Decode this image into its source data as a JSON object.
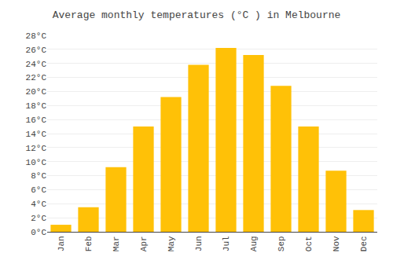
{
  "chart_data": {
    "type": "bar",
    "title": "Average monthly temperatures (°C ) in Melbourne",
    "categories": [
      "Jan",
      "Feb",
      "Mar",
      "Apr",
      "May",
      "Jun",
      "Jul",
      "Aug",
      "Sep",
      "Oct",
      "Nov",
      "Dec"
    ],
    "values": [
      1.0,
      3.5,
      9.2,
      15.0,
      19.2,
      23.8,
      26.2,
      25.2,
      20.8,
      15.0,
      8.7,
      3.1
    ],
    "color": "#FFC107",
    "ylim": [
      0,
      28
    ],
    "yticks": [
      {
        "value": 0,
        "label": "0°C"
      },
      {
        "value": 2,
        "label": "2°C"
      },
      {
        "value": 4,
        "label": "4°C"
      },
      {
        "value": 6,
        "label": "6°C"
      },
      {
        "value": 8,
        "label": "8°C"
      },
      {
        "value": 10,
        "label": "10°C"
      },
      {
        "value": 12,
        "label": "12°C"
      },
      {
        "value": 14,
        "label": "14°C"
      },
      {
        "value": 16,
        "label": "16°C"
      },
      {
        "value": 18,
        "label": "18°C"
      },
      {
        "value": 20,
        "label": "20°C"
      },
      {
        "value": 22,
        "label": "22°C"
      },
      {
        "value": 24,
        "label": "24°C"
      },
      {
        "value": 26,
        "label": "26°C"
      },
      {
        "value": 28,
        "label": "28°C"
      }
    ],
    "grid": true
  }
}
